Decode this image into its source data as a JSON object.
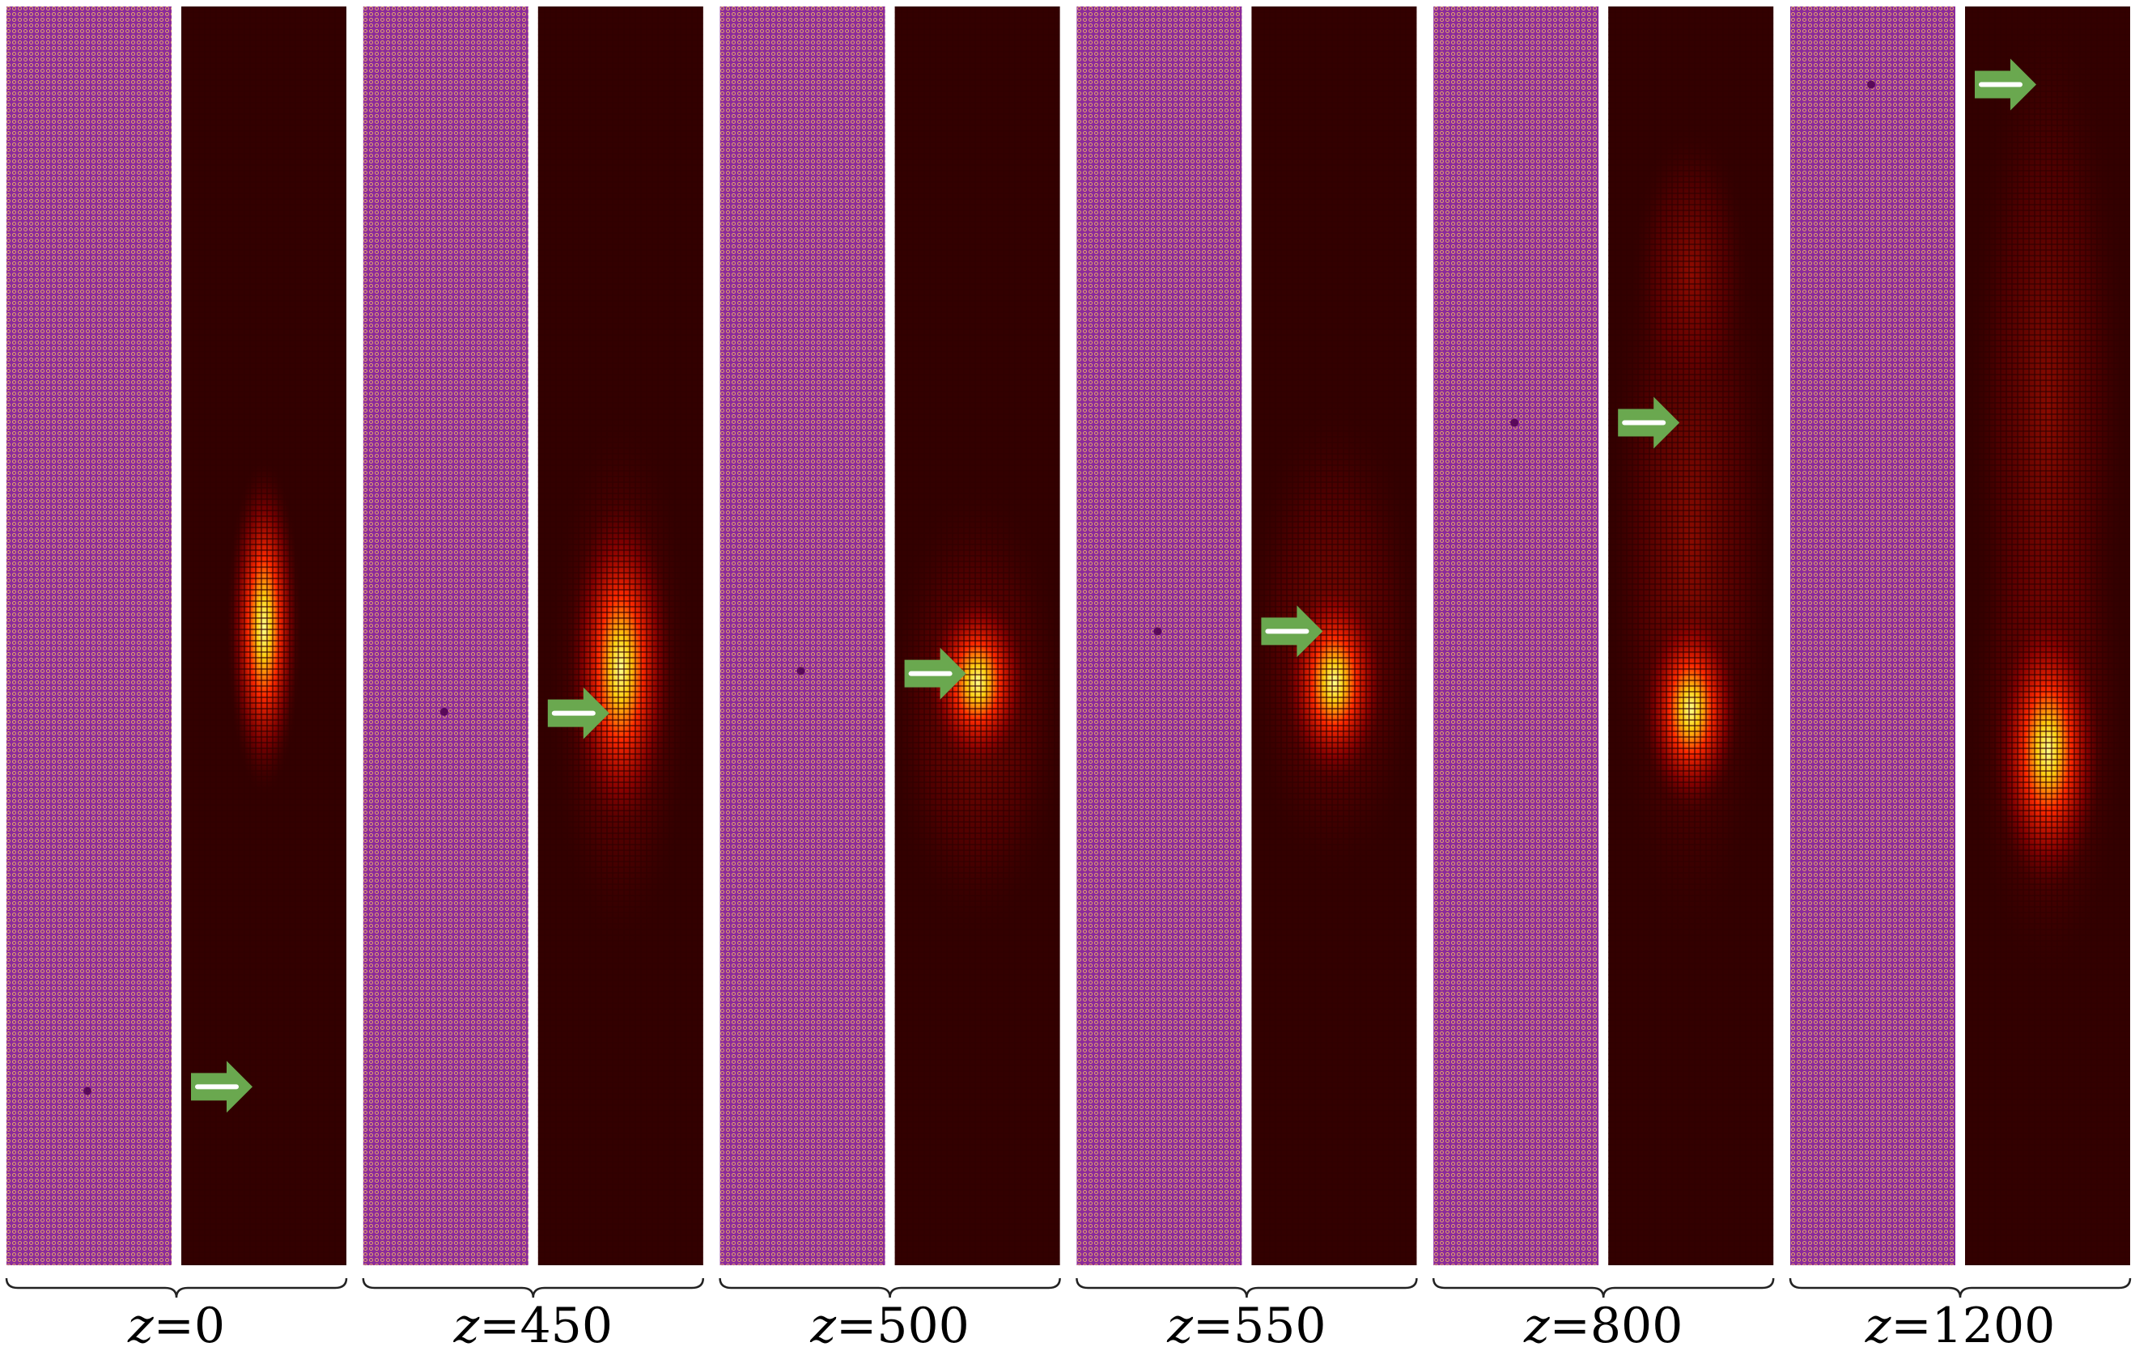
{
  "labels": [
    "z=0",
    "z=450",
    "z=500",
    "z=550",
    "z=800",
    "z=1200"
  ]
}
